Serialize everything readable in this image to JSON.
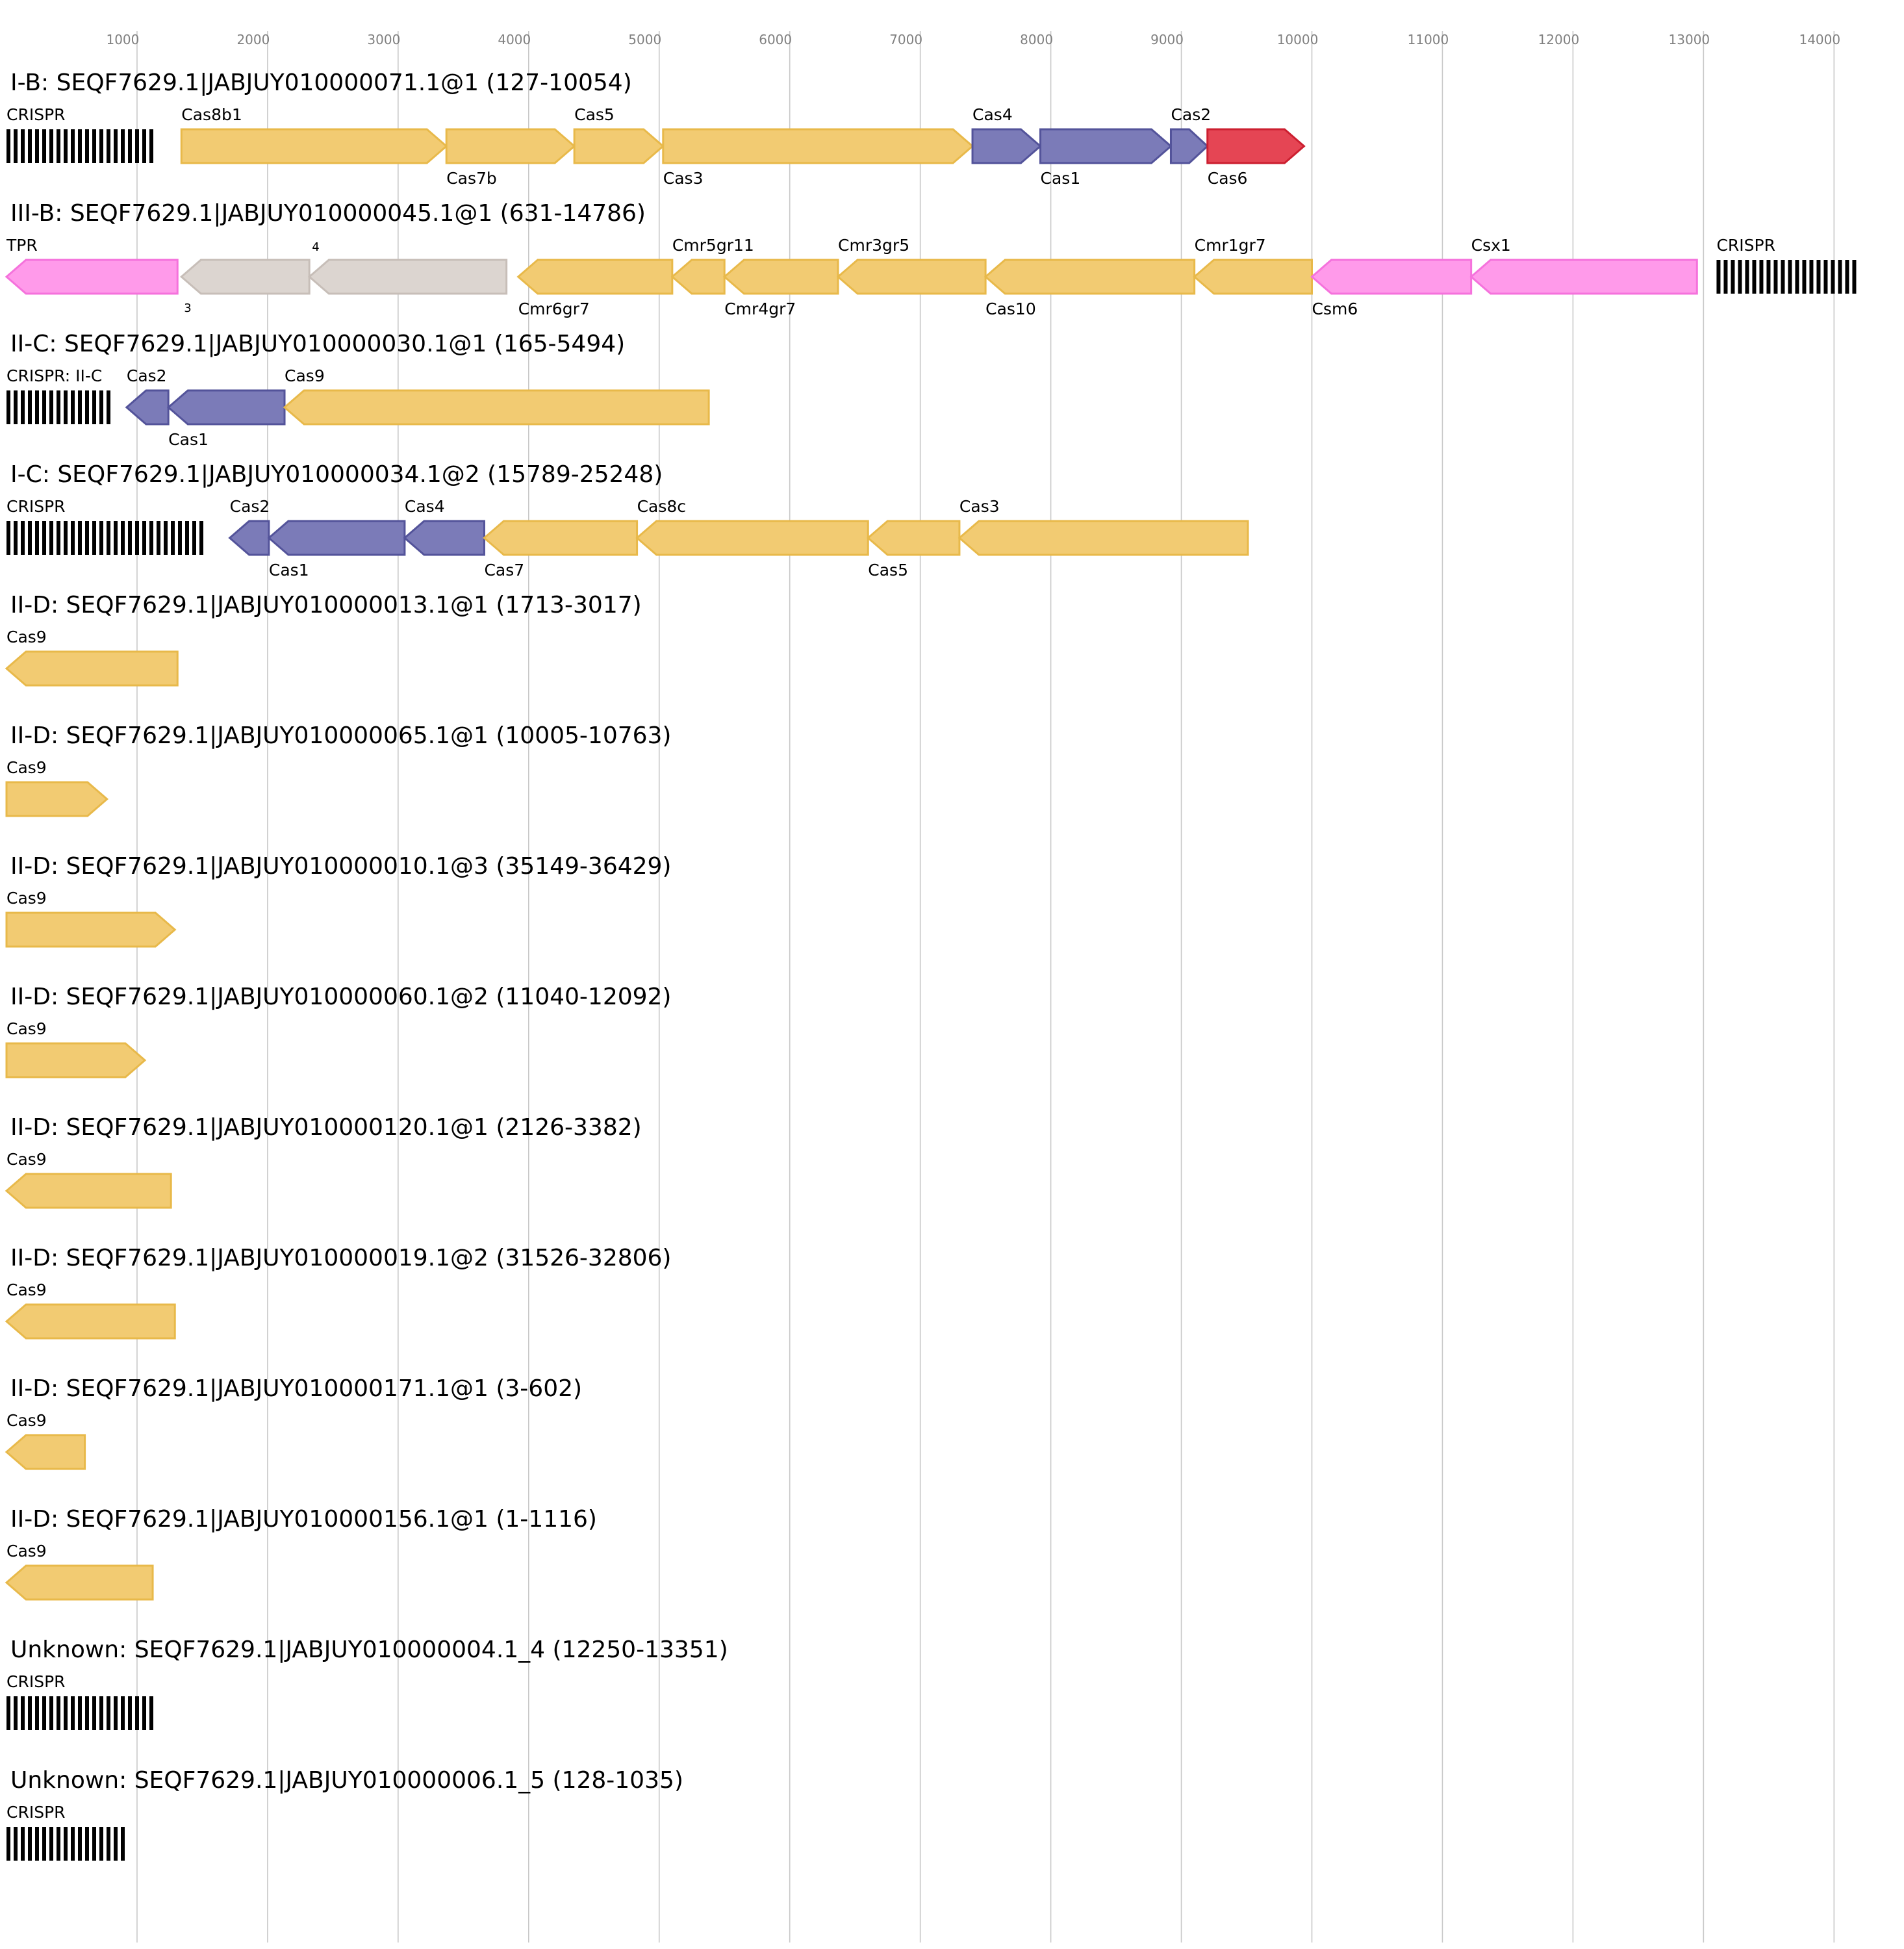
{
  "axis": {
    "min": 0,
    "max": 14000,
    "ticks": [
      1000,
      2000,
      3000,
      4000,
      5000,
      6000,
      7000,
      8000,
      9000,
      10000,
      11000,
      12000,
      13000,
      14000
    ]
  },
  "colors": {
    "grid": "#c8c8c8",
    "tick_label": "#808080",
    "crispr": "#000000",
    "yellow_fill": "#f2cb72",
    "yellow_stroke": "#e8b94a",
    "blue_fill": "#7b7bb8",
    "blue_stroke": "#53539a",
    "red_fill": "#e54554",
    "red_stroke": "#cc1f30",
    "pink_fill": "#ff9aea",
    "pink_stroke": "#f572dc",
    "grey_fill": "#dcd5d0",
    "grey_stroke": "#c7beb8"
  },
  "loci": [
    {
      "title": "I-B: SEQF7629.1|JABJUY010000071.1@1 (127-10054)",
      "crisprs": [
        {
          "label": "CRISPR",
          "start": 0,
          "end": 1120,
          "label_pos": "above"
        }
      ],
      "genes": [
        {
          "label": "Cas8b1",
          "start": 1340,
          "end": 3370,
          "strand": 1,
          "color": "yellow",
          "label_pos": "above"
        },
        {
          "label": "Cas7b",
          "start": 3370,
          "end": 4350,
          "strand": 1,
          "color": "yellow",
          "label_pos": "below"
        },
        {
          "label": "Cas5",
          "start": 4350,
          "end": 5030,
          "strand": 1,
          "color": "yellow",
          "label_pos": "above"
        },
        {
          "label": "Cas3",
          "start": 5030,
          "end": 7400,
          "strand": 1,
          "color": "yellow",
          "label_pos": "below"
        },
        {
          "label": "Cas4",
          "start": 7400,
          "end": 7920,
          "strand": 1,
          "color": "blue",
          "label_pos": "above"
        },
        {
          "label": "Cas1",
          "start": 7920,
          "end": 8920,
          "strand": 1,
          "color": "blue",
          "label_pos": "below"
        },
        {
          "label": "Cas2",
          "start": 8920,
          "end": 9200,
          "strand": 1,
          "color": "blue",
          "label_pos": "above"
        },
        {
          "label": "Cas6",
          "start": 9200,
          "end": 9940,
          "strand": 1,
          "color": "red",
          "label_pos": "below"
        }
      ]
    },
    {
      "title": "III-B: SEQF7629.1|JABJUY010000045.1@1 (631-14786)",
      "crisprs": [
        {
          "label": "CRISPR",
          "start": 13100,
          "end": 14200,
          "label_pos": "above"
        }
      ],
      "genes": [
        {
          "label": "TPR",
          "start": 0,
          "end": 1310,
          "strand": -1,
          "color": "pink",
          "label_pos": "above"
        },
        {
          "label": "3",
          "start": 1340,
          "end": 2320,
          "strand": -1,
          "color": "grey",
          "label_pos": "below",
          "small": true
        },
        {
          "label": "4",
          "start": 2320,
          "end": 3830,
          "strand": -1,
          "color": "grey",
          "label_pos": "above",
          "small": true
        },
        {
          "label": "Cmr6gr7",
          "start": 3920,
          "end": 5100,
          "strand": -1,
          "color": "yellow",
          "label_pos": "below"
        },
        {
          "label": "Cmr5gr11",
          "start": 5100,
          "end": 5500,
          "strand": -1,
          "color": "yellow",
          "label_pos": "above"
        },
        {
          "label": "Cmr4gr7",
          "start": 5500,
          "end": 6370,
          "strand": -1,
          "color": "yellow",
          "label_pos": "below"
        },
        {
          "label": "Cmr3gr5",
          "start": 6370,
          "end": 7500,
          "strand": -1,
          "color": "yellow",
          "label_pos": "above"
        },
        {
          "label": "Cas10",
          "start": 7500,
          "end": 9100,
          "strand": -1,
          "color": "yellow",
          "label_pos": "below"
        },
        {
          "label": "Cmr1gr7",
          "start": 9100,
          "end": 10000,
          "strand": -1,
          "color": "yellow",
          "label_pos": "above"
        },
        {
          "label": "Csm6",
          "start": 10000,
          "end": 11220,
          "strand": -1,
          "color": "pink",
          "label_pos": "below"
        },
        {
          "label": "Csx1",
          "start": 11220,
          "end": 12950,
          "strand": -1,
          "color": "pink",
          "label_pos": "above"
        }
      ]
    },
    {
      "title": "II-C: SEQF7629.1|JABJUY010000030.1@1 (165-5494)",
      "crisprs": [
        {
          "label": "CRISPR: II-C",
          "start": 0,
          "end": 830,
          "label_pos": "above"
        }
      ],
      "genes": [
        {
          "label": "Cas2",
          "start": 920,
          "end": 1240,
          "strand": -1,
          "color": "blue",
          "label_pos": "above"
        },
        {
          "label": "Cas1",
          "start": 1240,
          "end": 2130,
          "strand": -1,
          "color": "blue",
          "label_pos": "below"
        },
        {
          "label": "Cas9",
          "start": 2130,
          "end": 5380,
          "strand": -1,
          "color": "yellow",
          "label_pos": "above"
        }
      ]
    },
    {
      "title": "I-C: SEQF7629.1|JABJUY010000034.1@2 (15789-25248)",
      "crisprs": [
        {
          "label": "CRISPR",
          "start": 0,
          "end": 1500,
          "label_pos": "above"
        }
      ],
      "genes": [
        {
          "label": "Cas2",
          "start": 1710,
          "end": 2010,
          "strand": -1,
          "color": "blue",
          "label_pos": "above"
        },
        {
          "label": "Cas1",
          "start": 2010,
          "end": 3050,
          "strand": -1,
          "color": "blue",
          "label_pos": "below"
        },
        {
          "label": "Cas4",
          "start": 3050,
          "end": 3660,
          "strand": -1,
          "color": "blue",
          "label_pos": "above"
        },
        {
          "label": "Cas7",
          "start": 3660,
          "end": 4830,
          "strand": -1,
          "color": "yellow",
          "label_pos": "below"
        },
        {
          "label": "Cas8c",
          "start": 4830,
          "end": 6600,
          "strand": -1,
          "color": "yellow",
          "label_pos": "above"
        },
        {
          "label": "Cas5",
          "start": 6600,
          "end": 7300,
          "strand": -1,
          "color": "yellow",
          "label_pos": "below"
        },
        {
          "label": "Cas3",
          "start": 7300,
          "end": 9510,
          "strand": -1,
          "color": "yellow",
          "label_pos": "above"
        }
      ]
    },
    {
      "title": "II-D: SEQF7629.1|JABJUY010000013.1@1 (1713-3017)",
      "crisprs": [],
      "genes": [
        {
          "label": "Cas9",
          "start": 0,
          "end": 1310,
          "strand": -1,
          "color": "yellow",
          "label_pos": "above"
        }
      ]
    },
    {
      "title": "II-D: SEQF7629.1|JABJUY010000065.1@1 (10005-10763)",
      "crisprs": [],
      "genes": [
        {
          "label": "Cas9",
          "start": 0,
          "end": 770,
          "strand": 1,
          "color": "yellow",
          "label_pos": "above"
        }
      ]
    },
    {
      "title": "II-D: SEQF7629.1|JABJUY010000010.1@3 (35149-36429)",
      "crisprs": [],
      "genes": [
        {
          "label": "Cas9",
          "start": 0,
          "end": 1290,
          "strand": 1,
          "color": "yellow",
          "label_pos": "above"
        }
      ]
    },
    {
      "title": "II-D: SEQF7629.1|JABJUY010000060.1@2 (11040-12092)",
      "crisprs": [],
      "genes": [
        {
          "label": "Cas9",
          "start": 0,
          "end": 1060,
          "strand": 1,
          "color": "yellow",
          "label_pos": "above"
        }
      ]
    },
    {
      "title": "II-D: SEQF7629.1|JABJUY010000120.1@1 (2126-3382)",
      "crisprs": [],
      "genes": [
        {
          "label": "Cas9",
          "start": 0,
          "end": 1260,
          "strand": -1,
          "color": "yellow",
          "label_pos": "above"
        }
      ]
    },
    {
      "title": "II-D: SEQF7629.1|JABJUY010000019.1@2 (31526-32806)",
      "crisprs": [],
      "genes": [
        {
          "label": "Cas9",
          "start": 0,
          "end": 1290,
          "strand": -1,
          "color": "yellow",
          "label_pos": "above"
        }
      ]
    },
    {
      "title": "II-D: SEQF7629.1|JABJUY010000171.1@1 (3-602)",
      "crisprs": [],
      "genes": [
        {
          "label": "Cas9",
          "start": 0,
          "end": 600,
          "strand": -1,
          "color": "yellow",
          "label_pos": "above"
        }
      ]
    },
    {
      "title": "II-D: SEQF7629.1|JABJUY010000156.1@1 (1-1116)",
      "crisprs": [],
      "genes": [
        {
          "label": "Cas9",
          "start": 0,
          "end": 1120,
          "strand": -1,
          "color": "yellow",
          "label_pos": "above"
        }
      ]
    },
    {
      "title": "Unknown: SEQF7629.1|JABJUY010000004.1_4 (12250-13351)",
      "crisprs": [
        {
          "label": "CRISPR",
          "start": 0,
          "end": 1110,
          "label_pos": "above"
        }
      ],
      "genes": []
    },
    {
      "title": "Unknown: SEQF7629.1|JABJUY010000006.1_5 (128-1035)",
      "crisprs": [
        {
          "label": "CRISPR",
          "start": 0,
          "end": 910,
          "label_pos": "above"
        }
      ],
      "genes": []
    }
  ]
}
